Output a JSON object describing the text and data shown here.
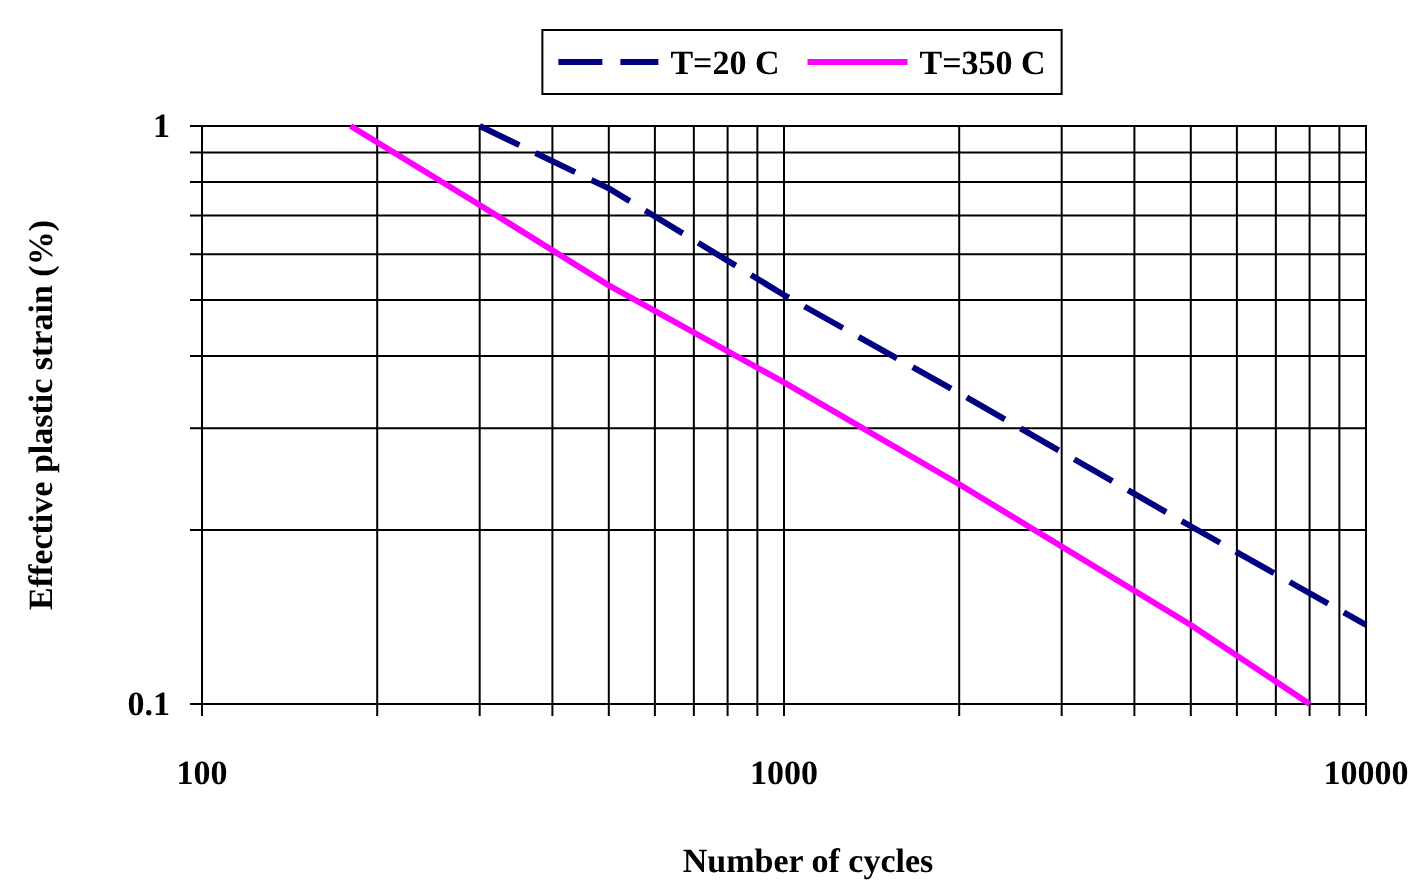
{
  "chart_data": {
    "type": "line",
    "xlabel": "Number of cycles",
    "ylabel": "Effective plastic strain (%)",
    "log": "xy",
    "grid": true,
    "legend": "top",
    "marker": "none",
    "xlim": [
      100,
      10000
    ],
    "ylim": [
      0.1,
      1
    ],
    "xticks": [
      100,
      {
        "value": 200,
        "label": null
      },
      {
        "value": 300,
        "label": null
      },
      {
        "value": 400,
        "label": null
      },
      {
        "value": 500,
        "label": null
      },
      {
        "value": 600,
        "label": null
      },
      {
        "value": 700,
        "label": null
      },
      {
        "value": 800,
        "label": null
      },
      {
        "value": 900,
        "label": null
      },
      1000,
      {
        "value": 2000,
        "label": null
      },
      {
        "value": 3000,
        "label": null
      },
      {
        "value": 4000,
        "label": null
      },
      {
        "value": 5000,
        "label": null
      },
      {
        "value": 6000,
        "label": null
      },
      {
        "value": 7000,
        "label": null
      },
      {
        "value": 8000,
        "label": null
      },
      {
        "value": 9000,
        "label": null
      },
      10000
    ],
    "yticks": [
      0.1,
      {
        "value": 0.2,
        "label": null
      },
      {
        "value": 0.3,
        "label": null
      },
      {
        "value": 0.4,
        "label": null
      },
      {
        "value": 0.5,
        "label": null
      },
      {
        "value": 0.6,
        "label": null
      },
      {
        "value": 0.7,
        "label": null
      },
      {
        "value": 0.8,
        "label": null
      },
      {
        "value": 0.9,
        "label": null
      },
      1
    ],
    "series": [
      {
        "name": "T=20 C",
        "color": "#000080",
        "line_style": "dashed",
        "x": [
          300,
          500,
          1000,
          2000,
          5000,
          10000
        ],
        "values": [
          1,
          0.78,
          0.51,
          0.345,
          0.203,
          0.137
        ]
      },
      {
        "name": "T=350 C",
        "color": "#ff00ff",
        "line_style": "solid",
        "x": [
          180,
          300,
          500,
          1000,
          2000,
          5000,
          8000
        ],
        "values": [
          1,
          0.73,
          0.53,
          0.36,
          0.24,
          0.137,
          0.1
        ]
      }
    ]
  }
}
